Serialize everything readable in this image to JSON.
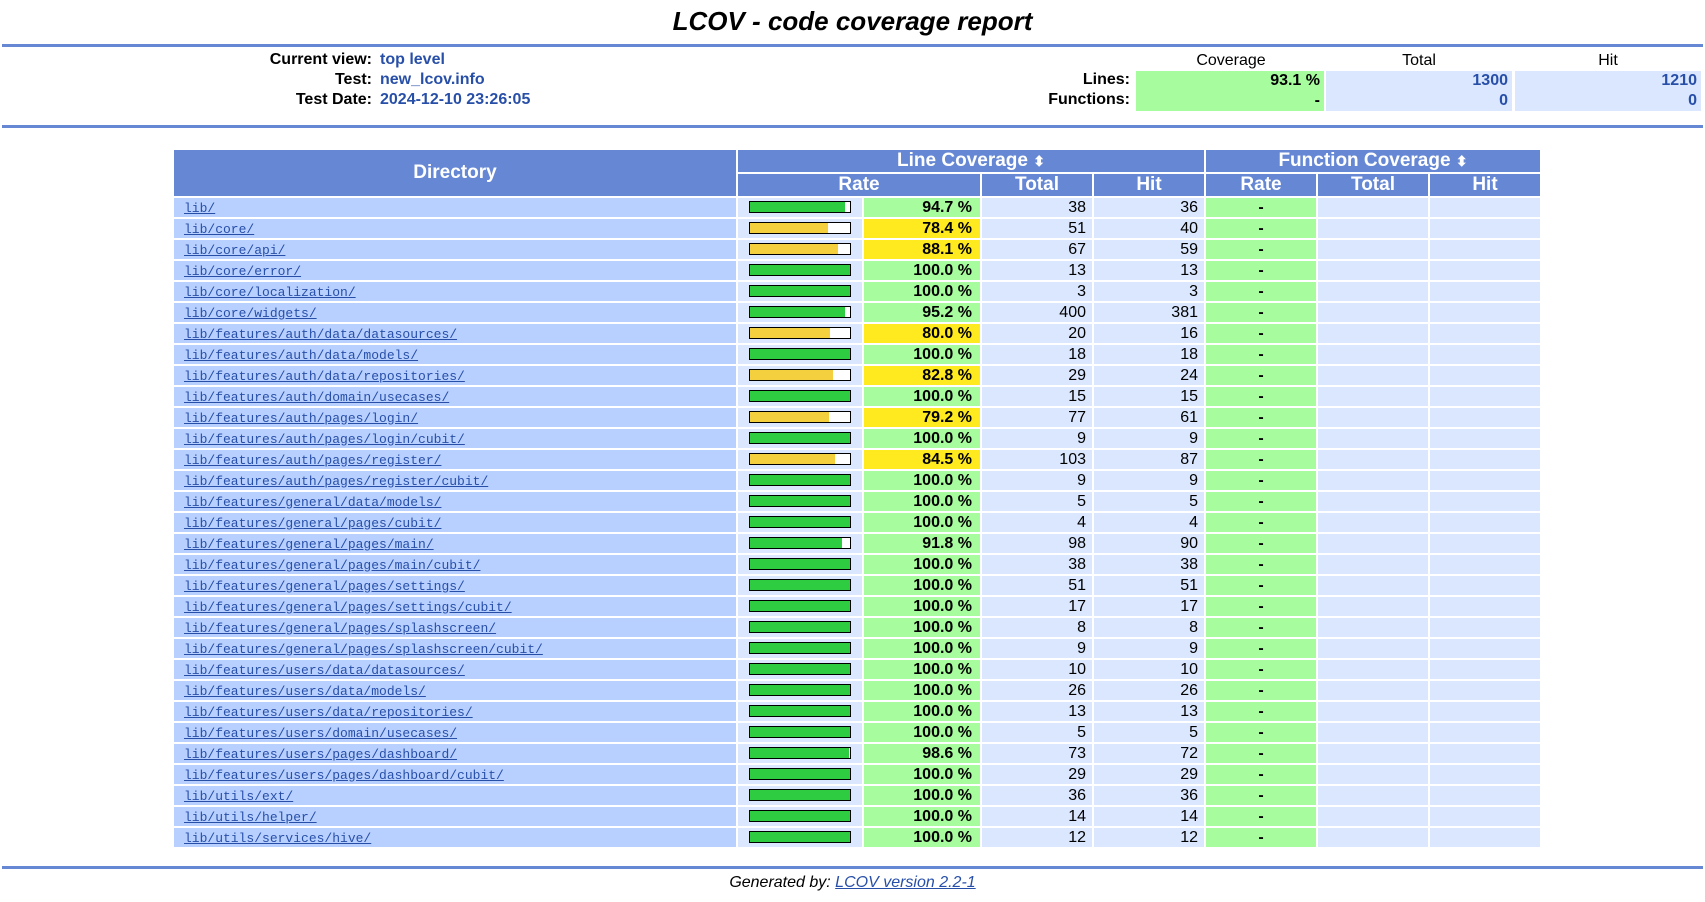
{
  "title": "LCOV - code coverage report",
  "header": {
    "current_view_label": "Current view:",
    "current_view_value": "top level",
    "test_label": "Test:",
    "test_value": "new_lcov.info",
    "test_date_label": "Test Date:",
    "test_date_value": "2024-12-10 23:26:05",
    "col_coverage": "Coverage",
    "col_total": "Total",
    "col_hit": "Hit",
    "lines_label": "Lines:",
    "lines_coverage": "93.1 %",
    "lines_total": "1300",
    "lines_hit": "1210",
    "functions_label": "Functions:",
    "functions_coverage": "-",
    "functions_total": "0",
    "functions_hit": "0"
  },
  "table": {
    "directory_header": "Directory",
    "line_coverage_header": "Line Coverage",
    "function_coverage_header": "Function Coverage",
    "rate_header": "Rate",
    "total_header": "Total",
    "hit_header": "Hit",
    "sort_icon": "⬍",
    "rows": [
      {
        "dir": "lib/",
        "rate": "94.7 %",
        "total": "38",
        "hit": "36",
        "level": "hi",
        "pct": 94.7,
        "frate": "-"
      },
      {
        "dir": "lib/core/",
        "rate": "78.4 %",
        "total": "51",
        "hit": "40",
        "level": "med",
        "pct": 78.4,
        "frate": "-"
      },
      {
        "dir": "lib/core/api/",
        "rate": "88.1 %",
        "total": "67",
        "hit": "59",
        "level": "med",
        "pct": 88.1,
        "frate": "-"
      },
      {
        "dir": "lib/core/error/",
        "rate": "100.0 %",
        "total": "13",
        "hit": "13",
        "level": "hi",
        "pct": 100,
        "frate": "-"
      },
      {
        "dir": "lib/core/localization/",
        "rate": "100.0 %",
        "total": "3",
        "hit": "3",
        "level": "hi",
        "pct": 100,
        "frate": "-"
      },
      {
        "dir": "lib/core/widgets/",
        "rate": "95.2 %",
        "total": "400",
        "hit": "381",
        "level": "hi",
        "pct": 95.2,
        "frate": "-"
      },
      {
        "dir": "lib/features/auth/data/datasources/",
        "rate": "80.0 %",
        "total": "20",
        "hit": "16",
        "level": "med",
        "pct": 80,
        "frate": "-"
      },
      {
        "dir": "lib/features/auth/data/models/",
        "rate": "100.0 %",
        "total": "18",
        "hit": "18",
        "level": "hi",
        "pct": 100,
        "frate": "-"
      },
      {
        "dir": "lib/features/auth/data/repositories/",
        "rate": "82.8 %",
        "total": "29",
        "hit": "24",
        "level": "med",
        "pct": 82.8,
        "frate": "-"
      },
      {
        "dir": "lib/features/auth/domain/usecases/",
        "rate": "100.0 %",
        "total": "15",
        "hit": "15",
        "level": "hi",
        "pct": 100,
        "frate": "-"
      },
      {
        "dir": "lib/features/auth/pages/login/",
        "rate": "79.2 %",
        "total": "77",
        "hit": "61",
        "level": "med",
        "pct": 79.2,
        "frate": "-"
      },
      {
        "dir": "lib/features/auth/pages/login/cubit/",
        "rate": "100.0 %",
        "total": "9",
        "hit": "9",
        "level": "hi",
        "pct": 100,
        "frate": "-"
      },
      {
        "dir": "lib/features/auth/pages/register/",
        "rate": "84.5 %",
        "total": "103",
        "hit": "87",
        "level": "med",
        "pct": 84.5,
        "frate": "-"
      },
      {
        "dir": "lib/features/auth/pages/register/cubit/",
        "rate": "100.0 %",
        "total": "9",
        "hit": "9",
        "level": "hi",
        "pct": 100,
        "frate": "-"
      },
      {
        "dir": "lib/features/general/data/models/",
        "rate": "100.0 %",
        "total": "5",
        "hit": "5",
        "level": "hi",
        "pct": 100,
        "frate": "-"
      },
      {
        "dir": "lib/features/general/pages/cubit/",
        "rate": "100.0 %",
        "total": "4",
        "hit": "4",
        "level": "hi",
        "pct": 100,
        "frate": "-"
      },
      {
        "dir": "lib/features/general/pages/main/",
        "rate": "91.8 %",
        "total": "98",
        "hit": "90",
        "level": "hi",
        "pct": 91.8,
        "frate": "-"
      },
      {
        "dir": "lib/features/general/pages/main/cubit/",
        "rate": "100.0 %",
        "total": "38",
        "hit": "38",
        "level": "hi",
        "pct": 100,
        "frate": "-"
      },
      {
        "dir": "lib/features/general/pages/settings/",
        "rate": "100.0 %",
        "total": "51",
        "hit": "51",
        "level": "hi",
        "pct": 100,
        "frate": "-"
      },
      {
        "dir": "lib/features/general/pages/settings/cubit/",
        "rate": "100.0 %",
        "total": "17",
        "hit": "17",
        "level": "hi",
        "pct": 100,
        "frate": "-"
      },
      {
        "dir": "lib/features/general/pages/splashscreen/",
        "rate": "100.0 %",
        "total": "8",
        "hit": "8",
        "level": "hi",
        "pct": 100,
        "frate": "-"
      },
      {
        "dir": "lib/features/general/pages/splashscreen/cubit/",
        "rate": "100.0 %",
        "total": "9",
        "hit": "9",
        "level": "hi",
        "pct": 100,
        "frate": "-"
      },
      {
        "dir": "lib/features/users/data/datasources/",
        "rate": "100.0 %",
        "total": "10",
        "hit": "10",
        "level": "hi",
        "pct": 100,
        "frate": "-"
      },
      {
        "dir": "lib/features/users/data/models/",
        "rate": "100.0 %",
        "total": "26",
        "hit": "26",
        "level": "hi",
        "pct": 100,
        "frate": "-"
      },
      {
        "dir": "lib/features/users/data/repositories/",
        "rate": "100.0 %",
        "total": "13",
        "hit": "13",
        "level": "hi",
        "pct": 100,
        "frate": "-"
      },
      {
        "dir": "lib/features/users/domain/usecases/",
        "rate": "100.0 %",
        "total": "5",
        "hit": "5",
        "level": "hi",
        "pct": 100,
        "frate": "-"
      },
      {
        "dir": "lib/features/users/pages/dashboard/",
        "rate": "98.6 %",
        "total": "73",
        "hit": "72",
        "level": "hi",
        "pct": 98.6,
        "frate": "-"
      },
      {
        "dir": "lib/features/users/pages/dashboard/cubit/",
        "rate": "100.0 %",
        "total": "29",
        "hit": "29",
        "level": "hi",
        "pct": 100,
        "frate": "-"
      },
      {
        "dir": "lib/utils/ext/",
        "rate": "100.0 %",
        "total": "36",
        "hit": "36",
        "level": "hi",
        "pct": 100,
        "frate": "-"
      },
      {
        "dir": "lib/utils/helper/",
        "rate": "100.0 %",
        "total": "14",
        "hit": "14",
        "level": "hi",
        "pct": 100,
        "frate": "-"
      },
      {
        "dir": "lib/utils/services/hive/",
        "rate": "100.0 %",
        "total": "12",
        "hit": "12",
        "level": "hi",
        "pct": 100,
        "frate": "-"
      }
    ]
  },
  "footer": {
    "generated_by": "Generated by:",
    "lcov_version": "LCOV version 2.2-1"
  },
  "colors": {
    "ruler": "#6688d4",
    "high": "#a7fc9d",
    "medium": "#ffea20",
    "link": "#284fa8"
  }
}
